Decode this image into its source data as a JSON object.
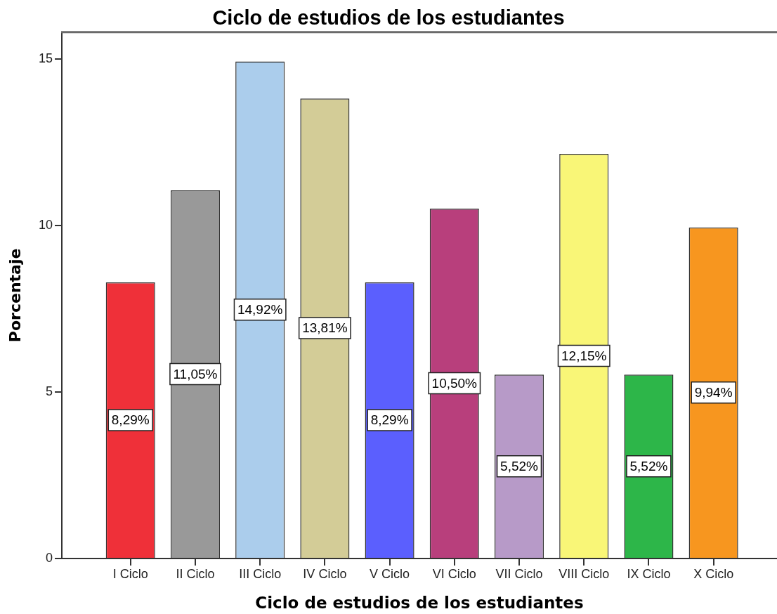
{
  "chart_data": {
    "type": "bar",
    "title": "Ciclo de estudios de los estudiantes",
    "xlabel": "Ciclo de estudios de los estudiantes",
    "ylabel": "Porcentaje",
    "categories": [
      "I Ciclo",
      "II Ciclo",
      "III Ciclo",
      "IV Ciclo",
      "V Ciclo",
      "VI Ciclo",
      "VII Ciclo",
      "VIII Ciclo",
      "IX Ciclo",
      "X Ciclo"
    ],
    "values": [
      8.29,
      11.05,
      14.92,
      13.81,
      8.29,
      10.5,
      5.52,
      12.15,
      5.52,
      9.94
    ],
    "colors": [
      "#ef3039",
      "#999999",
      "#abcdec",
      "#d3cc97",
      "#5b5ffe",
      "#b83f7c",
      "#b79ac8",
      "#f9f677",
      "#2db649",
      "#f7961f"
    ],
    "value_labels": [
      "8,29%",
      "11,05%",
      "14,92%",
      "13,81%",
      "8,29%",
      "10,50%",
      "5,52%",
      "12,15%",
      "5,52%",
      "9,94%"
    ],
    "ylim": [
      0,
      15.8
    ],
    "yticks": [
      0,
      5,
      10,
      15
    ]
  }
}
